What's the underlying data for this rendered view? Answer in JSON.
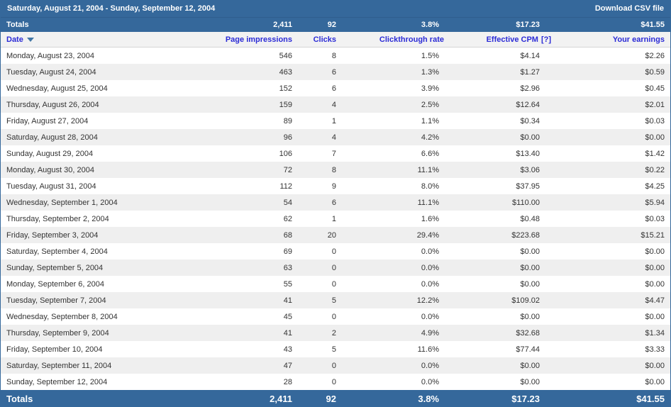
{
  "colors": {
    "bar_blue": "#35689B",
    "link_blue": "#2B2BD6",
    "row_alt": "#EFEFEF"
  },
  "title_bar": {
    "date_range": "Saturday, August 21, 2004 - Sunday, September 12, 2004",
    "download_link": "Download CSV file"
  },
  "columns": {
    "date": "Date",
    "impressions": "Page impressions",
    "clicks": "Clicks",
    "ctr": "Clickthrough rate",
    "ecpm": "Effective CPM",
    "ecpm_help": "[?]",
    "earnings": "Your earnings"
  },
  "totals": {
    "label": "Totals",
    "impressions": "2,411",
    "clicks": "92",
    "ctr": "3.8%",
    "ecpm": "$17.23",
    "earnings": "$41.55"
  },
  "rows": [
    {
      "date": "Monday, August 23, 2004",
      "impressions": "546",
      "clicks": "8",
      "ctr": "1.5%",
      "ecpm": "$4.14",
      "earnings": "$2.26"
    },
    {
      "date": "Tuesday, August 24, 2004",
      "impressions": "463",
      "clicks": "6",
      "ctr": "1.3%",
      "ecpm": "$1.27",
      "earnings": "$0.59"
    },
    {
      "date": "Wednesday, August 25, 2004",
      "impressions": "152",
      "clicks": "6",
      "ctr": "3.9%",
      "ecpm": "$2.96",
      "earnings": "$0.45"
    },
    {
      "date": "Thursday, August 26, 2004",
      "impressions": "159",
      "clicks": "4",
      "ctr": "2.5%",
      "ecpm": "$12.64",
      "earnings": "$2.01"
    },
    {
      "date": "Friday, August 27, 2004",
      "impressions": "89",
      "clicks": "1",
      "ctr": "1.1%",
      "ecpm": "$0.34",
      "earnings": "$0.03"
    },
    {
      "date": "Saturday, August 28, 2004",
      "impressions": "96",
      "clicks": "4",
      "ctr": "4.2%",
      "ecpm": "$0.00",
      "earnings": "$0.00"
    },
    {
      "date": "Sunday, August 29, 2004",
      "impressions": "106",
      "clicks": "7",
      "ctr": "6.6%",
      "ecpm": "$13.40",
      "earnings": "$1.42"
    },
    {
      "date": "Monday, August 30, 2004",
      "impressions": "72",
      "clicks": "8",
      "ctr": "11.1%",
      "ecpm": "$3.06",
      "earnings": "$0.22"
    },
    {
      "date": "Tuesday, August 31, 2004",
      "impressions": "112",
      "clicks": "9",
      "ctr": "8.0%",
      "ecpm": "$37.95",
      "earnings": "$4.25"
    },
    {
      "date": "Wednesday, September 1, 2004",
      "impressions": "54",
      "clicks": "6",
      "ctr": "11.1%",
      "ecpm": "$110.00",
      "earnings": "$5.94"
    },
    {
      "date": "Thursday, September 2, 2004",
      "impressions": "62",
      "clicks": "1",
      "ctr": "1.6%",
      "ecpm": "$0.48",
      "earnings": "$0.03"
    },
    {
      "date": "Friday, September 3, 2004",
      "impressions": "68",
      "clicks": "20",
      "ctr": "29.4%",
      "ecpm": "$223.68",
      "earnings": "$15.21"
    },
    {
      "date": "Saturday, September 4, 2004",
      "impressions": "69",
      "clicks": "0",
      "ctr": "0.0%",
      "ecpm": "$0.00",
      "earnings": "$0.00"
    },
    {
      "date": "Sunday, September 5, 2004",
      "impressions": "63",
      "clicks": "0",
      "ctr": "0.0%",
      "ecpm": "$0.00",
      "earnings": "$0.00"
    },
    {
      "date": "Monday, September 6, 2004",
      "impressions": "55",
      "clicks": "0",
      "ctr": "0.0%",
      "ecpm": "$0.00",
      "earnings": "$0.00"
    },
    {
      "date": "Tuesday, September 7, 2004",
      "impressions": "41",
      "clicks": "5",
      "ctr": "12.2%",
      "ecpm": "$109.02",
      "earnings": "$4.47"
    },
    {
      "date": "Wednesday, September 8, 2004",
      "impressions": "45",
      "clicks": "0",
      "ctr": "0.0%",
      "ecpm": "$0.00",
      "earnings": "$0.00"
    },
    {
      "date": "Thursday, September 9, 2004",
      "impressions": "41",
      "clicks": "2",
      "ctr": "4.9%",
      "ecpm": "$32.68",
      "earnings": "$1.34"
    },
    {
      "date": "Friday, September 10, 2004",
      "impressions": "43",
      "clicks": "5",
      "ctr": "11.6%",
      "ecpm": "$77.44",
      "earnings": "$3.33"
    },
    {
      "date": "Saturday, September 11, 2004",
      "impressions": "47",
      "clicks": "0",
      "ctr": "0.0%",
      "ecpm": "$0.00",
      "earnings": "$0.00"
    },
    {
      "date": "Sunday, September 12, 2004",
      "impressions": "28",
      "clicks": "0",
      "ctr": "0.0%",
      "ecpm": "$0.00",
      "earnings": "$0.00"
    }
  ]
}
